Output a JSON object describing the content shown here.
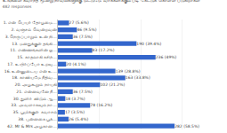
{
  "chart_data": {
    "type": "bar",
    "orientation": "horizontal",
    "title": "உங்களை கவர்ந்த மூன்று நாவல்களுக்கு மட்டுமே வாக்களிக்கும் படி கேட்டுக் கொள்ள படுகிறீர்கள்",
    "subtitle": "482 responses",
    "categories": [
      "1. என் பெயர் தோழமை...",
      "2. வஞ்சம் வென்றவன்",
      "3. நெருப்பாறும் உன் நி...",
      "13. மனதுக்குள் தங்கி...",
      "11. எண்ணங்களின் ஓ...",
      "15. காதலாகி கசிந்...",
      "17. உயிர்ப்போ உறவு...",
      "16. உன்னுடைய என் உ...",
      "18. காவியமே நீதிவ...",
      "20. அழகூறும் நாயகி",
      "21. என்னவனே நீ...",
      "30. துளிர் விடும் ஆ...",
      "33. அவளாகவும் நா...",
      "35. பூமிக்குள் சுவாசம்",
      "38. புன்னகை பூக்...",
      "42. Mr & Mrs அழகான..."
    ],
    "values": [
      27,
      46,
      36,
      190,
      83,
      236,
      20,
      139,
      163,
      102,
      36,
      18,
      78,
      17,
      26,
      282
    ],
    "value_labels": [
      "27 (5.6%)",
      "46 (9.5%)",
      "36 (7.5%)",
      "190 (39.4%)",
      "83 (17.2%)",
      "236 (49%)",
      "20 (4.1%)",
      "139 (28.8%)",
      "163 (33.8%)",
      "102 (21.2%)",
      "36 (7.5%)",
      "18 (3.7%)",
      "78 (16.2%)",
      "17 (3.5%)",
      "26 (5.4%)",
      "282 (58.5%)"
    ],
    "data_labels": true,
    "color": "#3366cc",
    "xlim": [
      0,
      400
    ],
    "xticks": [
      0,
      100,
      200,
      300,
      400
    ],
    "grid": true,
    "tick_labels": "y"
  }
}
